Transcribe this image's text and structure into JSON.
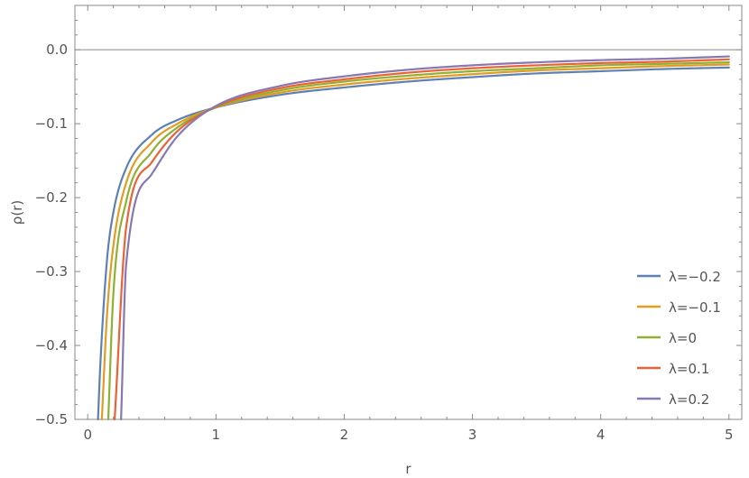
{
  "chart_data": {
    "type": "line",
    "title": "",
    "xlabel": "r",
    "ylabel": "ρ(r)",
    "xlim": [
      -0.1,
      5.1
    ],
    "ylim": [
      -0.5,
      0.06
    ],
    "x_ticks": [
      0,
      1,
      2,
      3,
      4,
      5
    ],
    "x_tick_labels": [
      "0",
      "1",
      "2",
      "3",
      "4",
      "5"
    ],
    "y_ticks": [
      0.0,
      -0.1,
      -0.2,
      -0.3,
      -0.4,
      -0.5
    ],
    "y_tick_labels": [
      "0.0",
      "−0.1",
      "−0.2",
      "−0.3",
      "−0.4",
      "−0.5"
    ],
    "grid": false,
    "zero_line": true,
    "legend_position": "bottom-right",
    "x": [
      0.08,
      0.1,
      0.15,
      0.2,
      0.3,
      0.5,
      0.7,
      1.0,
      1.5,
      2.0,
      2.5,
      3.0,
      3.5,
      4.0,
      4.5,
      5.0
    ],
    "series": [
      {
        "name": "λ=−0.2",
        "color": "#5e81b5",
        "values": [
          -0.5,
          -0.42,
          -0.285,
          -0.22,
          -0.16,
          -0.115,
          -0.095,
          -0.078,
          -0.061,
          -0.051,
          -0.043,
          -0.037,
          -0.032,
          -0.029,
          -0.026,
          -0.024
        ]
      },
      {
        "name": "λ=−0.1",
        "color": "#e19c24",
        "values": [
          null,
          -0.5,
          -0.36,
          -0.265,
          -0.18,
          -0.125,
          -0.1,
          -0.078,
          -0.058,
          -0.047,
          -0.039,
          -0.033,
          -0.028,
          -0.025,
          -0.022,
          -0.02
        ]
      },
      {
        "name": "λ=0",
        "color": "#8fb032",
        "values": [
          null,
          null,
          -0.46,
          -0.33,
          -0.205,
          -0.138,
          -0.105,
          -0.078,
          -0.055,
          -0.043,
          -0.035,
          -0.029,
          -0.025,
          -0.021,
          -0.019,
          -0.017
        ]
      },
      {
        "name": "λ=0.1",
        "color": "#eb6235",
        "values": [
          null,
          null,
          null,
          -0.43,
          -0.24,
          -0.152,
          -0.11,
          -0.077,
          -0.052,
          -0.04,
          -0.031,
          -0.025,
          -0.021,
          -0.018,
          -0.016,
          -0.013
        ]
      },
      {
        "name": "λ=0.2",
        "color": "#8778b3",
        "values": [
          null,
          null,
          null,
          null,
          -0.29,
          -0.168,
          -0.117,
          -0.076,
          -0.049,
          -0.036,
          -0.027,
          -0.021,
          -0.017,
          -0.014,
          -0.012,
          -0.009
        ]
      }
    ],
    "series_start_x": [
      0.08,
      0.11,
      0.16,
      0.21,
      0.26
    ]
  }
}
